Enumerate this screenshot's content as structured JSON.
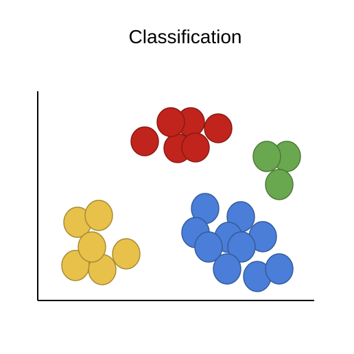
{
  "title": "Classification",
  "colors": {
    "red": "#c0241c",
    "green": "#6aa84f",
    "blue": "#4a7ed8",
    "yellow": "#e8c14a"
  },
  "clusters": [
    {
      "name": "red",
      "count": 7
    },
    {
      "name": "green",
      "count": 3
    },
    {
      "name": "blue",
      "count": 13
    },
    {
      "name": "yellow",
      "count": 7
    }
  ]
}
